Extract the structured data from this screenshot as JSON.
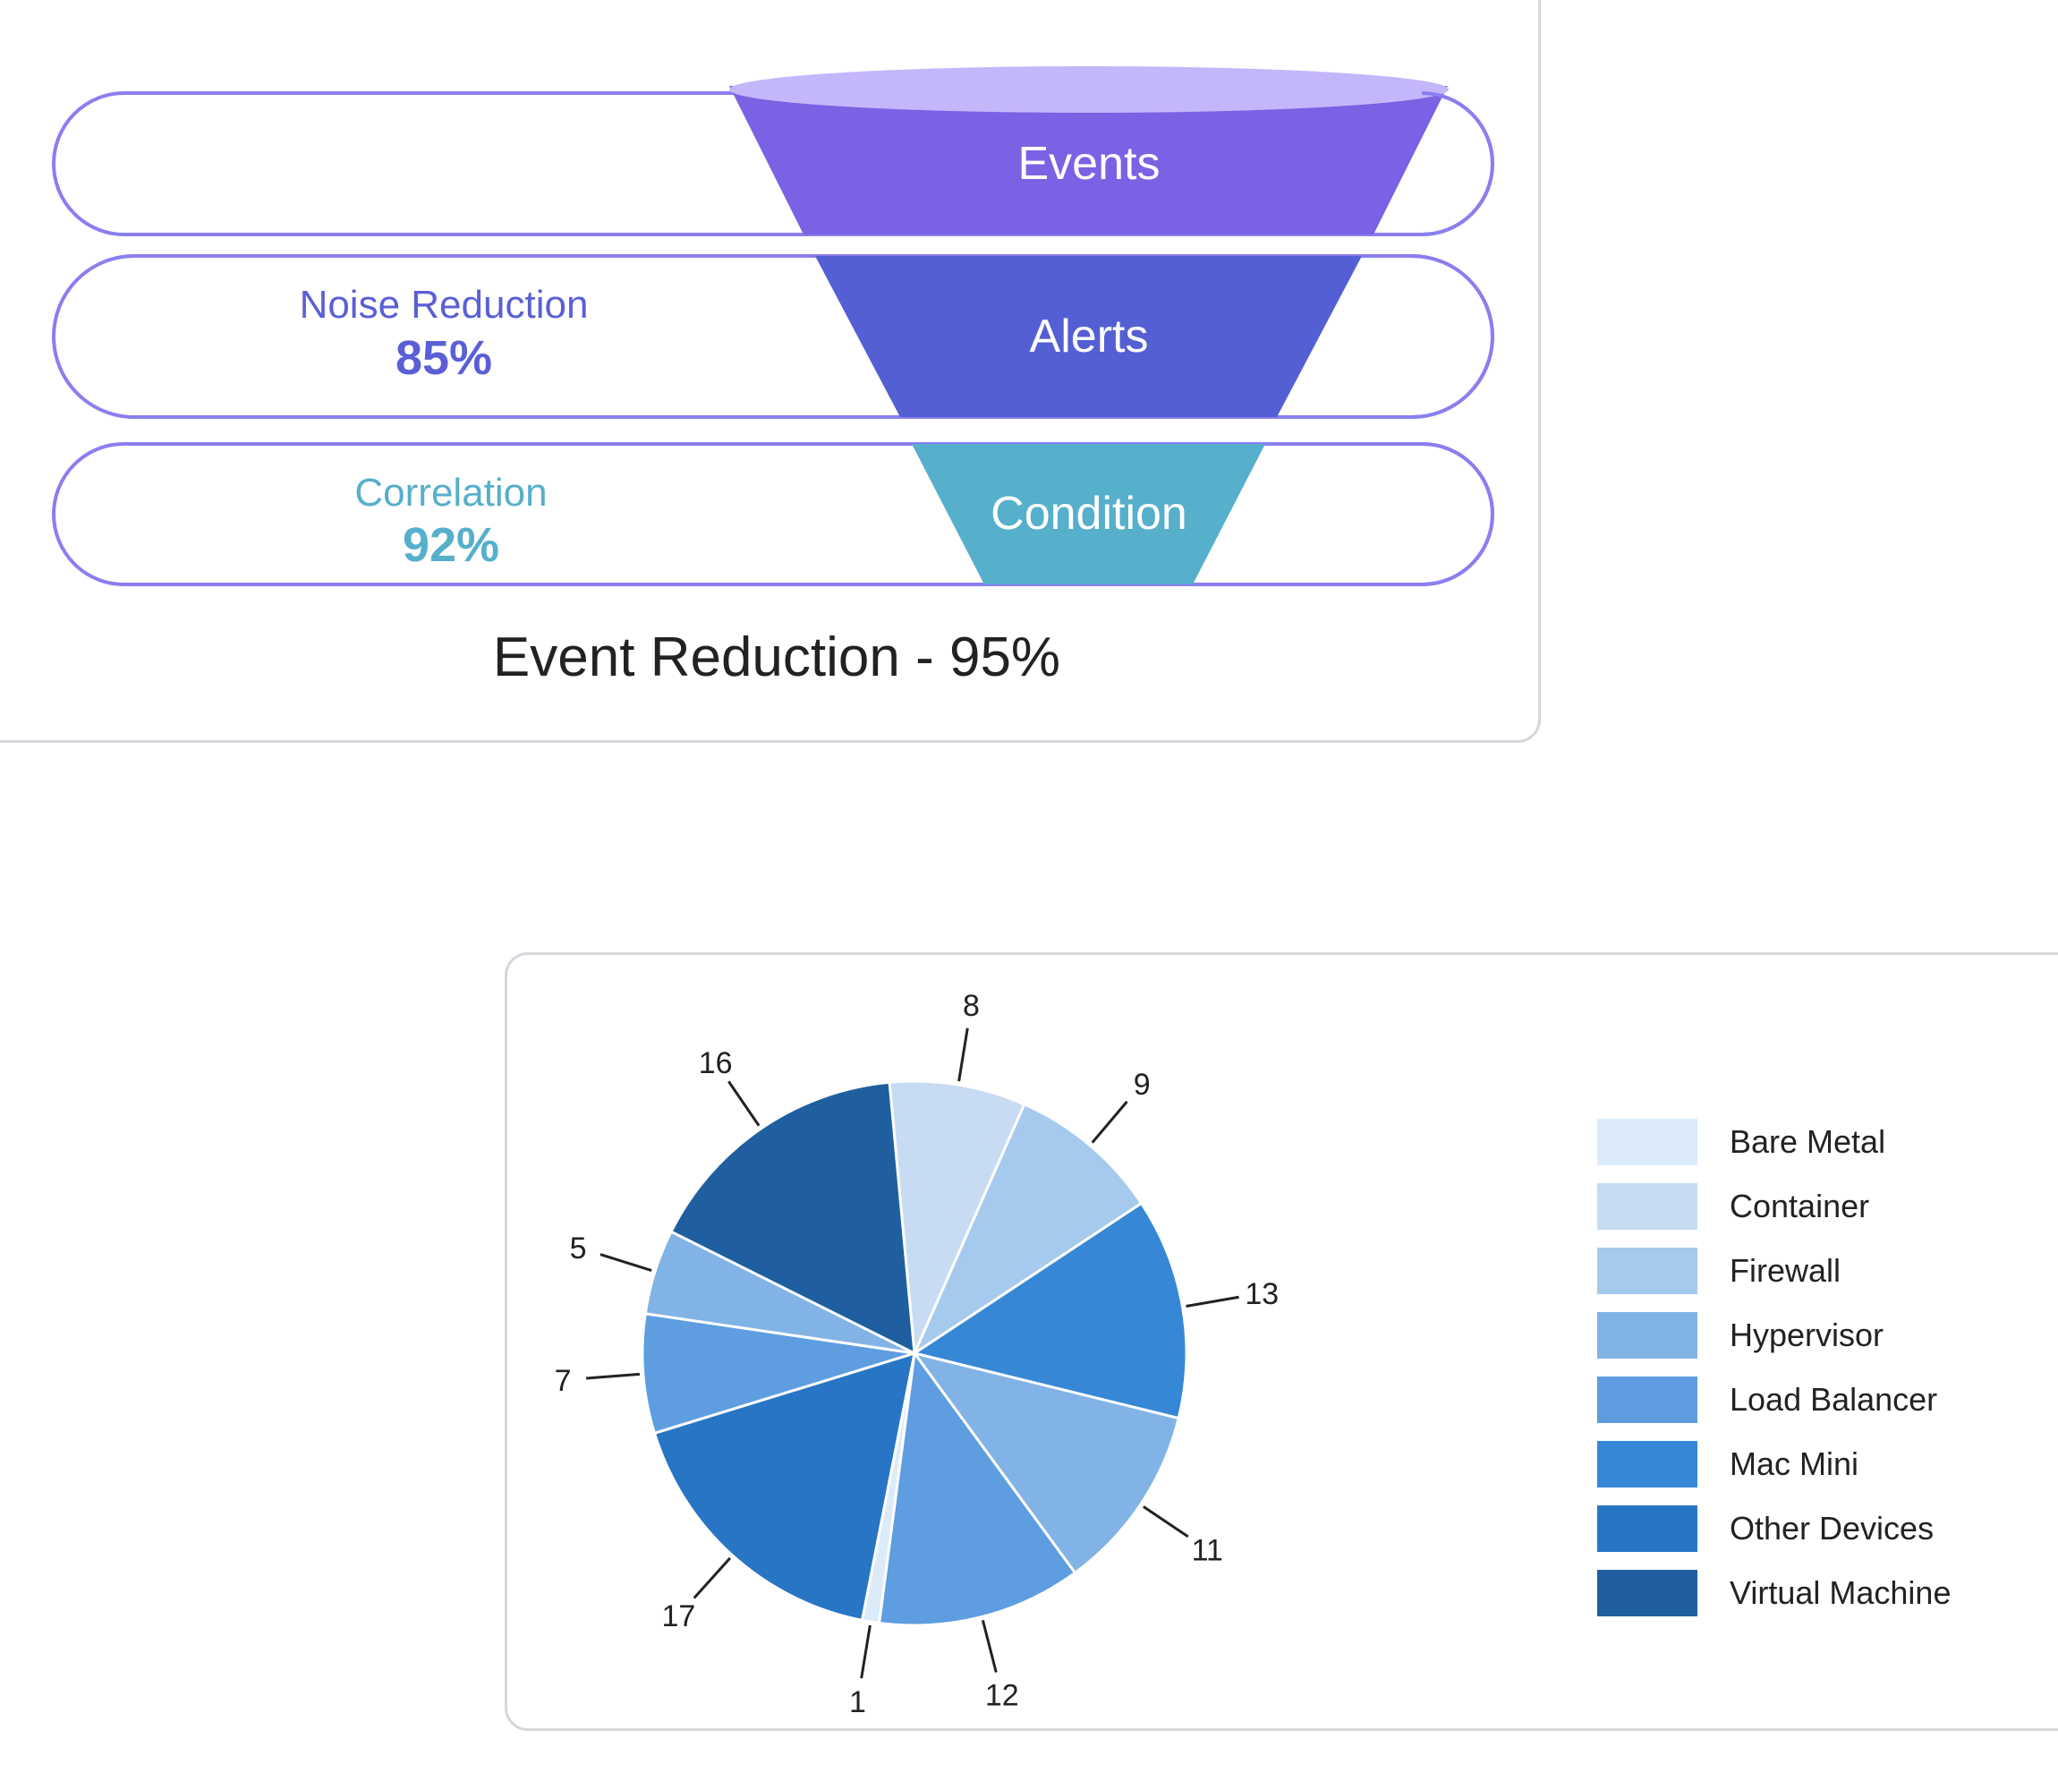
{
  "chart_data": [
    {
      "type": "funnel",
      "title": "Event Reduction - 95%",
      "stages": [
        {
          "name": "Events",
          "color": "#7b61e4"
        },
        {
          "name": "Alerts",
          "color": "#545fd3"
        },
        {
          "name": "Condition",
          "color": "#56afcb"
        }
      ],
      "metrics": [
        {
          "label": "Noise Reduction",
          "value": "85%",
          "color": "#5a5fd6"
        },
        {
          "label": "Correlation",
          "value": "92%",
          "color": "#56afcb"
        }
      ],
      "outline_color": "#8a7ef0",
      "top_rim_color": "#c4b6fb"
    },
    {
      "type": "pie",
      "legend_position": "right",
      "slices": [
        {
          "category": "Container",
          "value": 8,
          "color": "#c7dcf2"
        },
        {
          "category": "Firewall",
          "value": 9,
          "color": "#a6c9ee"
        },
        {
          "category": "Mac Mini",
          "value": 13,
          "color": "#3688d6"
        },
        {
          "category": "Hypervisor",
          "value": 11,
          "color": "#82b3e6"
        },
        {
          "category": "Load Balancer",
          "value": 12,
          "color": "#5d9de0"
        },
        {
          "category": "Bare Metal",
          "value": 1,
          "color": "#dcebfa"
        },
        {
          "category": "Other Devices",
          "value": 17,
          "color": "#2875c5"
        },
        {
          "category": "Load Balancer",
          "value": 7,
          "color": "#5d9de0"
        },
        {
          "category": "Hypervisor",
          "value": 5,
          "color": "#82b3e6"
        },
        {
          "category": "Virtual Machine",
          "value": 16,
          "color": "#1f5f9f"
        }
      ],
      "legend": [
        {
          "label": "Bare Metal",
          "color": "#dcebfa"
        },
        {
          "label": "Container",
          "color": "#c7dcf2"
        },
        {
          "label": "Firewall",
          "color": "#a6c9ee"
        },
        {
          "label": "Hypervisor",
          "color": "#82b3e6"
        },
        {
          "label": "Load Balancer",
          "color": "#5d9de0"
        },
        {
          "label": "Mac Mini",
          "color": "#3688d6"
        },
        {
          "label": "Other Devices",
          "color": "#2875c5"
        },
        {
          "label": "Virtual Machine",
          "color": "#1f5f9f"
        }
      ]
    }
  ]
}
